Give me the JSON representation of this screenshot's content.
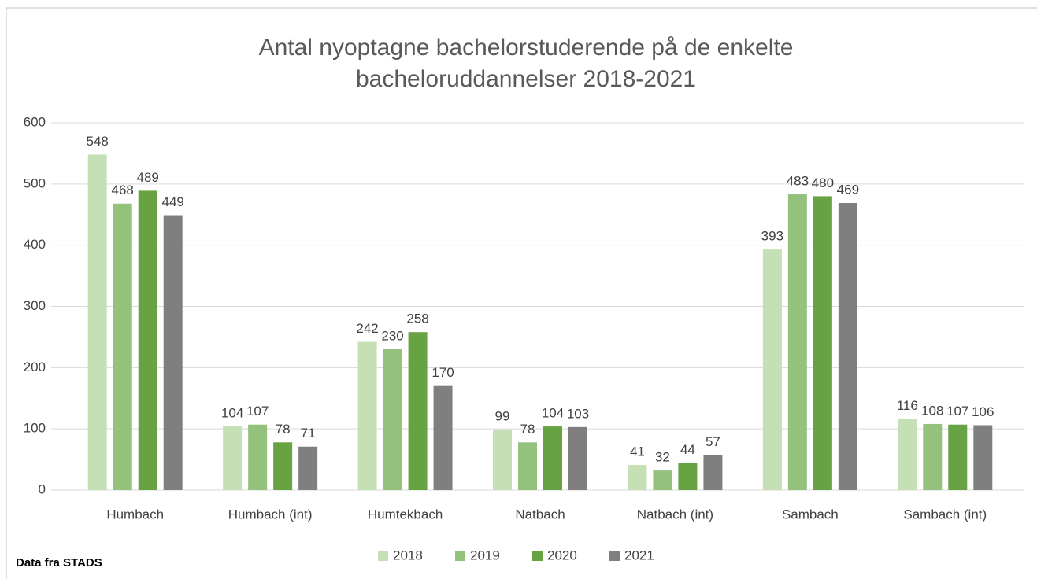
{
  "chart_data": {
    "type": "bar",
    "title": [
      "Antal nyoptagne bachelorstuderende på de enkelte",
      "bacheloruddannelser 2018-2021"
    ],
    "note": "Data fra STADS",
    "categories": [
      "Humbach",
      "Humbach (int)",
      "Humtekbach",
      "Natbach",
      "Natbach (int)",
      "Sambach",
      "Sambach (int)"
    ],
    "series": [
      {
        "name": "2018",
        "color": "#c5e0b4",
        "values": [
          548,
          104,
          242,
          99,
          41,
          393,
          116
        ]
      },
      {
        "name": "2019",
        "color": "#94c17b",
        "values": [
          468,
          107,
          230,
          78,
          32,
          483,
          108
        ]
      },
      {
        "name": "2020",
        "color": "#67a342",
        "values": [
          489,
          78,
          258,
          104,
          44,
          480,
          107
        ]
      },
      {
        "name": "2021",
        "color": "#7f7f7f",
        "values": [
          449,
          71,
          170,
          103,
          57,
          469,
          106
        ]
      }
    ],
    "ylim": [
      0,
      600
    ],
    "yticks": [
      0,
      100,
      200,
      300,
      400,
      500,
      600
    ],
    "grid": true,
    "legend": "bottom"
  }
}
